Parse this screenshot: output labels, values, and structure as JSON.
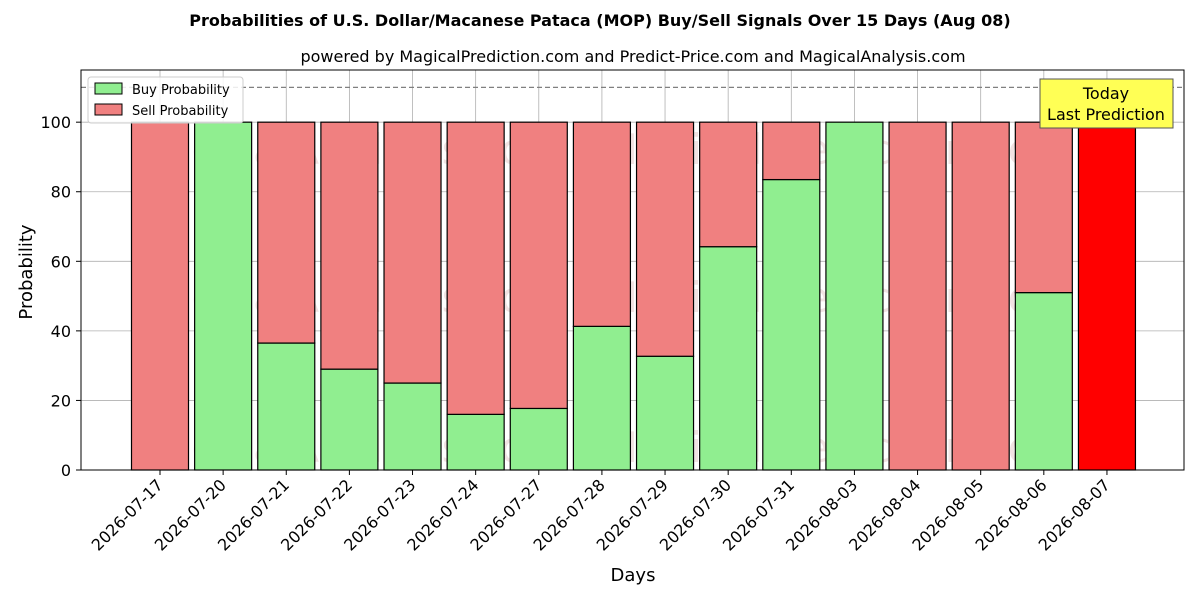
{
  "chart_data": {
    "type": "bar",
    "title": "Probabilities of U.S. Dollar/Macanese Pataca (MOP) Buy/Sell Signals Over 15 Days (Aug 08)",
    "subtitle": "powered by MagicalPrediction.com and Predict-Price.com and MagicalAnalysis.com",
    "xlabel": "Days",
    "ylabel": "Probability",
    "ylim": [
      0,
      115
    ],
    "yticks": [
      0,
      20,
      40,
      60,
      80,
      100
    ],
    "grid": true,
    "stacked": true,
    "legend_position": "top-left",
    "categories": [
      "2026-07-17",
      "2026-07-20",
      "2026-07-21",
      "2026-07-22",
      "2026-07-23",
      "2026-07-24",
      "2026-07-27",
      "2026-07-28",
      "2026-07-29",
      "2026-07-30",
      "2026-07-31",
      "2026-08-03",
      "2026-08-04",
      "2026-08-05",
      "2026-08-06",
      "2026-08-07"
    ],
    "series": [
      {
        "name": "Buy Probability",
        "color": "#90ee90",
        "values": [
          0,
          100,
          36.5,
          29,
          25,
          16,
          17.7,
          41.3,
          32.7,
          64.2,
          83.5,
          100,
          0,
          0,
          51,
          0
        ]
      },
      {
        "name": "Sell Probability",
        "color": "#f08080",
        "values": [
          100,
          0,
          63.5,
          71,
          75,
          84,
          82.3,
          58.7,
          67.3,
          35.8,
          16.5,
          0,
          100,
          100,
          49,
          100
        ]
      }
    ],
    "highlight": {
      "category": "2026-08-07",
      "color": "#ff0000"
    },
    "reference_line": {
      "y": 110,
      "style": "dashed"
    },
    "annotation": {
      "line1": "Today",
      "line2": "Last Prediction"
    },
    "watermark": {
      "left": "MagicalAnalysis.com",
      "right": "MagicalPrediction.com"
    }
  }
}
